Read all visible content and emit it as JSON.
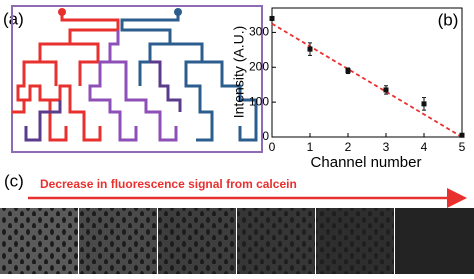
{
  "panel_labels": {
    "a": "(a)",
    "b": "(b)",
    "c": "(c)"
  },
  "arrow_text": "Decrease in fluorescence signal from calcein",
  "chart_data": {
    "type": "scatter",
    "x_label": "Channel number",
    "y_label": "Intensity (A.U.)",
    "x": [
      0,
      1,
      2,
      3,
      4,
      5
    ],
    "series": [
      {
        "color": "#111111",
        "values": [
          340,
          252,
          190,
          135,
          95,
          5
        ],
        "errors": [
          5,
          18,
          8,
          12,
          18,
          4
        ]
      }
    ],
    "fit_line": {
      "x": [
        0,
        5
      ],
      "values": [
        325,
        0
      ],
      "color": "#e8312f"
    },
    "xlim": [
      0,
      5
    ],
    "ylim": [
      0,
      370
    ],
    "xticks": [
      0,
      1,
      2,
      3,
      4,
      5
    ],
    "yticks": [
      0,
      100,
      200,
      300
    ]
  }
}
